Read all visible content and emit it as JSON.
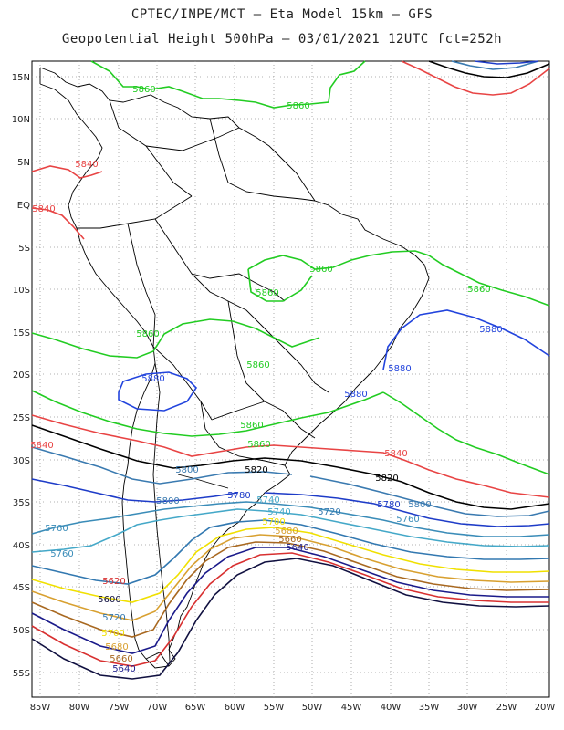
{
  "title_line1": "CPTEC/INPE/MCT –  Eta Model 15km – GFS",
  "title_line2": "Geopotential Height 500hPa – 03/01/2021 12UTC fct=252h",
  "lat_ticks": [
    "15N",
    "10N",
    "5N",
    "EQ",
    "5S",
    "10S",
    "15S",
    "20S",
    "25S",
    "30S",
    "35S",
    "40S",
    "45S",
    "50S",
    "55S"
  ],
  "lon_ticks": [
    "85W",
    "80W",
    "75W",
    "70W",
    "65W",
    "60W",
    "55W",
    "50W",
    "45W",
    "40W",
    "35W",
    "30W",
    "25W",
    "20W"
  ],
  "colors": {
    "5880": "#2244dd",
    "5860": "#22cc22",
    "5840": "#e84444",
    "5820": "#000000",
    "5800": "#3a7ab0",
    "5780": "#1e3cc8",
    "5760": "#3a8cb8",
    "5740": "#44a8c8",
    "5720": "#3278b0",
    "5700": "#f0e000",
    "5680": "#d8a030",
    "5660": "#a86820",
    "5640": "#1a1a8a",
    "5620": "#d83030",
    "5600": "#101040"
  },
  "contour_labels": [
    {
      "text": "5860",
      "color": "5860"
    },
    {
      "text": "5860",
      "color": "5860"
    },
    {
      "text": "5840",
      "color": "5840"
    },
    {
      "text": "5840",
      "color": "5840"
    },
    {
      "text": "5860",
      "color": "5860"
    },
    {
      "text": "5860",
      "color": "5860"
    },
    {
      "text": "5860",
      "color": "5860"
    },
    {
      "text": "5860",
      "color": "5860"
    },
    {
      "text": "5880",
      "color": "5880"
    },
    {
      "text": "5880",
      "color": "5880"
    },
    {
      "text": "5860",
      "color": "5860"
    },
    {
      "text": "5880",
      "color": "5880"
    },
    {
      "text": "5880",
      "color": "5880"
    },
    {
      "text": "5860",
      "color": "5860"
    },
    {
      "text": "5860",
      "color": "5860"
    },
    {
      "text": "5840",
      "color": "5840"
    },
    {
      "text": "5840",
      "color": "5840"
    },
    {
      "text": "5800",
      "color": "5800"
    },
    {
      "text": "5820",
      "color": "5820"
    },
    {
      "text": "5820",
      "color": "5820"
    },
    {
      "text": "5800",
      "color": "5800"
    },
    {
      "text": "5780",
      "color": "5780"
    },
    {
      "text": "5760",
      "color": "5760"
    },
    {
      "text": "5740",
      "color": "5740"
    },
    {
      "text": "5720",
      "color": "5720"
    },
    {
      "text": "5780",
      "color": "5780"
    },
    {
      "text": "5800",
      "color": "5800"
    },
    {
      "text": "5760",
      "color": "5760"
    },
    {
      "text": "5760",
      "color": "5760"
    },
    {
      "text": "5740",
      "color": "5740"
    },
    {
      "text": "5700",
      "color": "5700"
    },
    {
      "text": "5680",
      "color": "5680"
    },
    {
      "text": "5660",
      "color": "5660"
    },
    {
      "text": "5640",
      "color": "5640"
    },
    {
      "text": "5620",
      "color": "5620"
    },
    {
      "text": "5600",
      "color": "5600"
    },
    {
      "text": "5720",
      "color": "5720"
    },
    {
      "text": "5700",
      "color": "5700"
    },
    {
      "text": "5680",
      "color": "5680"
    },
    {
      "text": "5660",
      "color": "5660"
    },
    {
      "text": "5640",
      "color": "5640"
    },
    {
      "text": "5620",
      "color": "5620"
    },
    {
      "text": "5600",
      "color": "5600"
    }
  ]
}
